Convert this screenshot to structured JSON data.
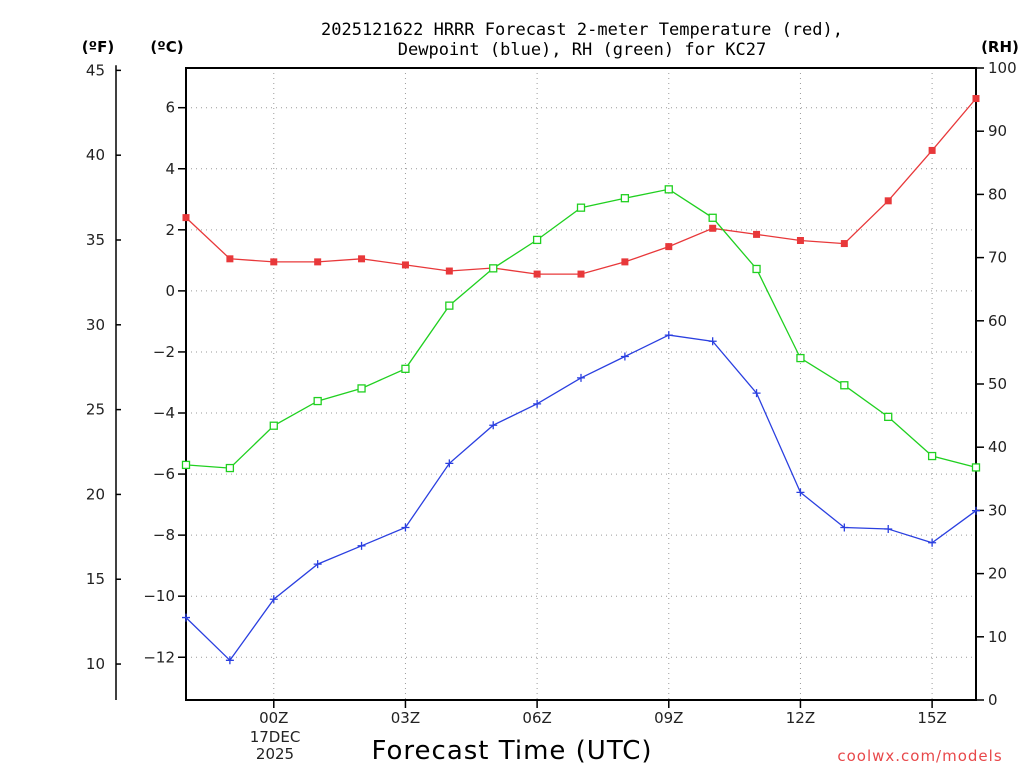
{
  "colors": {
    "temperature": "#e8383a",
    "dewpoint": "#2a3fe0",
    "rh": "#20d020",
    "credit": "#e8484a"
  },
  "chart_data": {
    "type": "line",
    "title_line1": "2025121622 HRRR Forecast 2-meter Temperature (red),",
    "title_line2": "Dewpoint (blue), RH (green) for KC27",
    "xlabel": "Forecast Time (UTC)",
    "credit": "coolwx.com/models",
    "units": {
      "fahrenheit": "(ºF)",
      "celsius": "(ºC)",
      "rh": "(RH)"
    },
    "x_hours": [
      -2,
      -1,
      0,
      1,
      2,
      3,
      4,
      5,
      6,
      7,
      8,
      9,
      10,
      11,
      12,
      13,
      14,
      15,
      16
    ],
    "xlim": [
      -2,
      16
    ],
    "x_ticks": [
      {
        "hour": 0,
        "label": "00Z"
      },
      {
        "hour": 3,
        "label": "03Z"
      },
      {
        "hour": 6,
        "label": "06Z"
      },
      {
        "hour": 9,
        "label": "09Z"
      },
      {
        "hour": 12,
        "label": "12Z"
      },
      {
        "hour": 15,
        "label": "15Z"
      }
    ],
    "date_label": [
      "17DEC",
      "2025"
    ],
    "celsius_axis": {
      "ylim": [
        -13.4,
        7.3
      ],
      "ticks": [
        6,
        4,
        2,
        0,
        -2,
        -4,
        -6,
        -8,
        -10,
        -12
      ]
    },
    "fahrenheit_axis": {
      "ylim": [
        7.88,
        45.14
      ],
      "ticks": [
        45,
        40,
        35,
        30,
        25,
        20,
        15,
        10
      ]
    },
    "rh_axis": {
      "ylim": [
        0,
        100
      ],
      "ticks": [
        100,
        90,
        80,
        70,
        60,
        50,
        40,
        30,
        20,
        10,
        0
      ]
    },
    "series": [
      {
        "name": "Temperature",
        "units": "°C",
        "color": "#e8383a",
        "marker": "filled-square",
        "values": [
          2.4,
          1.05,
          0.95,
          0.95,
          1.05,
          0.85,
          0.65,
          0.75,
          0.55,
          0.55,
          0.95,
          1.45,
          2.05,
          1.85,
          1.65,
          1.55,
          2.95,
          4.6,
          6.3
        ]
      },
      {
        "name": "Dewpoint",
        "units": "°C",
        "color": "#2a3fe0",
        "marker": "plus",
        "values": [
          -10.7,
          -12.1,
          -10.1,
          -8.95,
          -8.35,
          -7.75,
          -5.65,
          -4.4,
          -3.7,
          -2.85,
          -2.15,
          -1.45,
          -1.65,
          -3.35,
          -6.6,
          -7.75,
          -7.8,
          -8.25,
          -7.2
        ]
      },
      {
        "name": "RH",
        "units": "%",
        "color": "#20d020",
        "marker": "open-square",
        "values": [
          37.2,
          36.7,
          43.4,
          47.3,
          49.3,
          52.4,
          62.4,
          68.3,
          72.8,
          77.9,
          79.4,
          80.8,
          76.3,
          68.2,
          54.1,
          49.8,
          44.8,
          38.6,
          36.8
        ]
      }
    ]
  }
}
